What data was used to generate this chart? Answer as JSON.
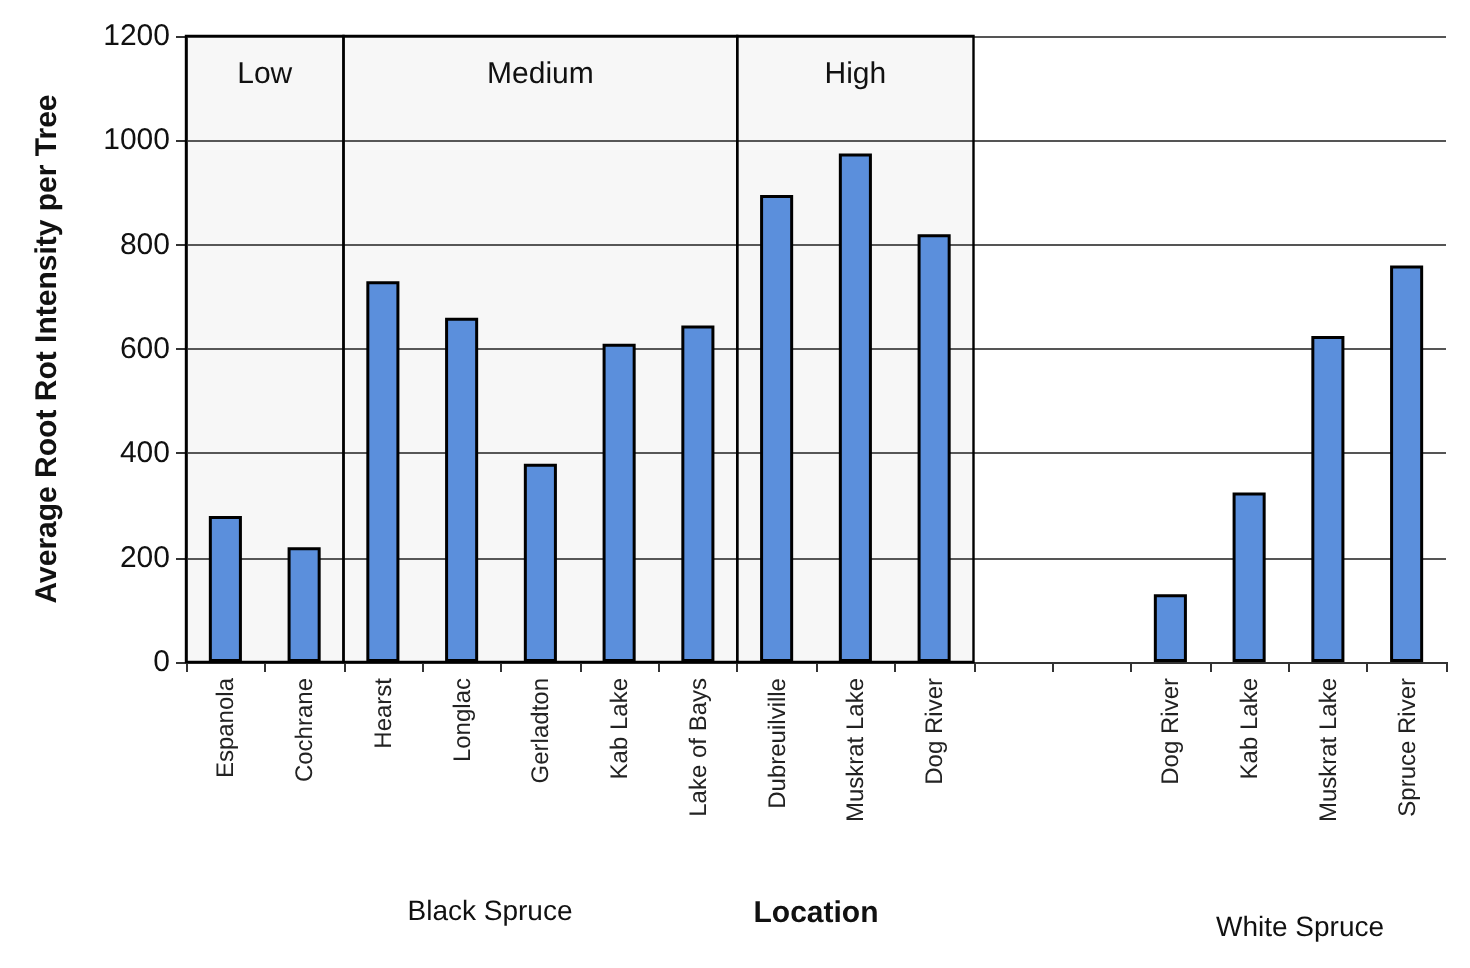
{
  "chart_data": {
    "type": "bar",
    "categories": [
      "Espanola",
      "Cochrane",
      "Hearst",
      "Longlac",
      "Gerladton",
      "Kab Lake",
      "Lake of Bays",
      "Dubreuilville",
      "Muskrat Lake",
      "Dog River",
      null,
      null,
      "Dog River",
      "Kab Lake",
      "Muskrat Lake",
      "Spruce River"
    ],
    "values": [
      280,
      220,
      730,
      660,
      380,
      610,
      645,
      895,
      975,
      820,
      null,
      null,
      130,
      325,
      625,
      760
    ],
    "color": "#5b8fdc",
    "xlabel": "Location",
    "ylabel": "Average Root Rot Intensity per Tree",
    "ylim": [
      0,
      1200
    ],
    "yticks": [
      0,
      200,
      400,
      600,
      800,
      1000,
      1200
    ],
    "grid": "y",
    "bands": [
      {
        "axis": "x",
        "from": "Espanola",
        "to": "Cochrane",
        "label": "Low"
      },
      {
        "axis": "x",
        "from": "Hearst",
        "to": "Lake of Bays",
        "label": "Medium"
      },
      {
        "axis": "x",
        "from": "Dubreuilville",
        "to": "Dog River",
        "label": "High"
      }
    ],
    "annotations": [
      "Black Spruce",
      "White Spruce"
    ]
  }
}
